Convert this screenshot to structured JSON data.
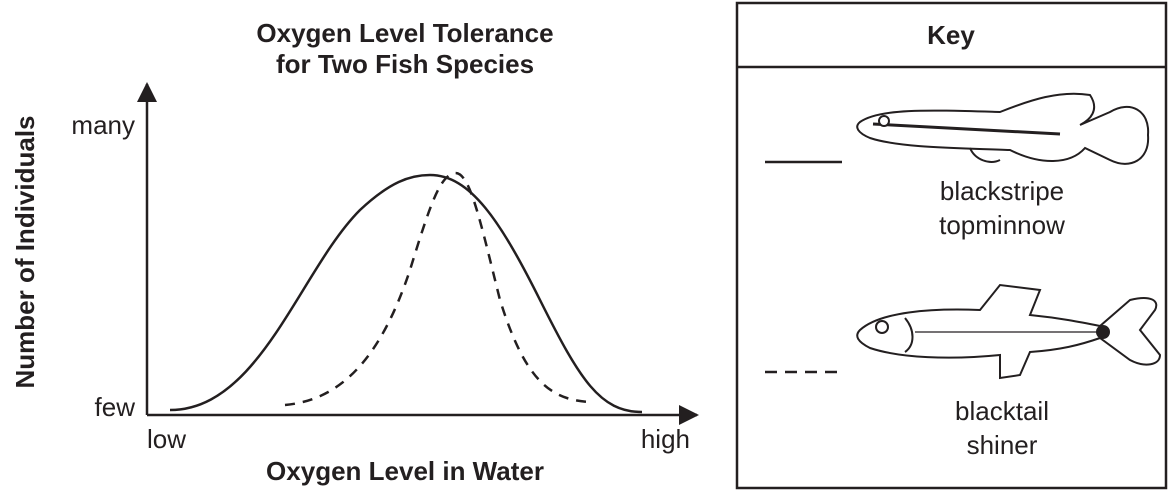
{
  "chart": {
    "title_lines": [
      "Oxygen Level Tolerance",
      "for Two Fish Species"
    ],
    "x_axis": {
      "label": "Oxygen Level in Water",
      "low": "low",
      "high": "high"
    },
    "y_axis": {
      "label": "Number of Individuals",
      "low": "few",
      "high": "many"
    }
  },
  "key": {
    "title": "Key",
    "entries": [
      {
        "label_lines": [
          "blackstripe",
          "topminnow"
        ]
      },
      {
        "label_lines": [
          "blacktail",
          "shiner"
        ]
      }
    ]
  }
}
